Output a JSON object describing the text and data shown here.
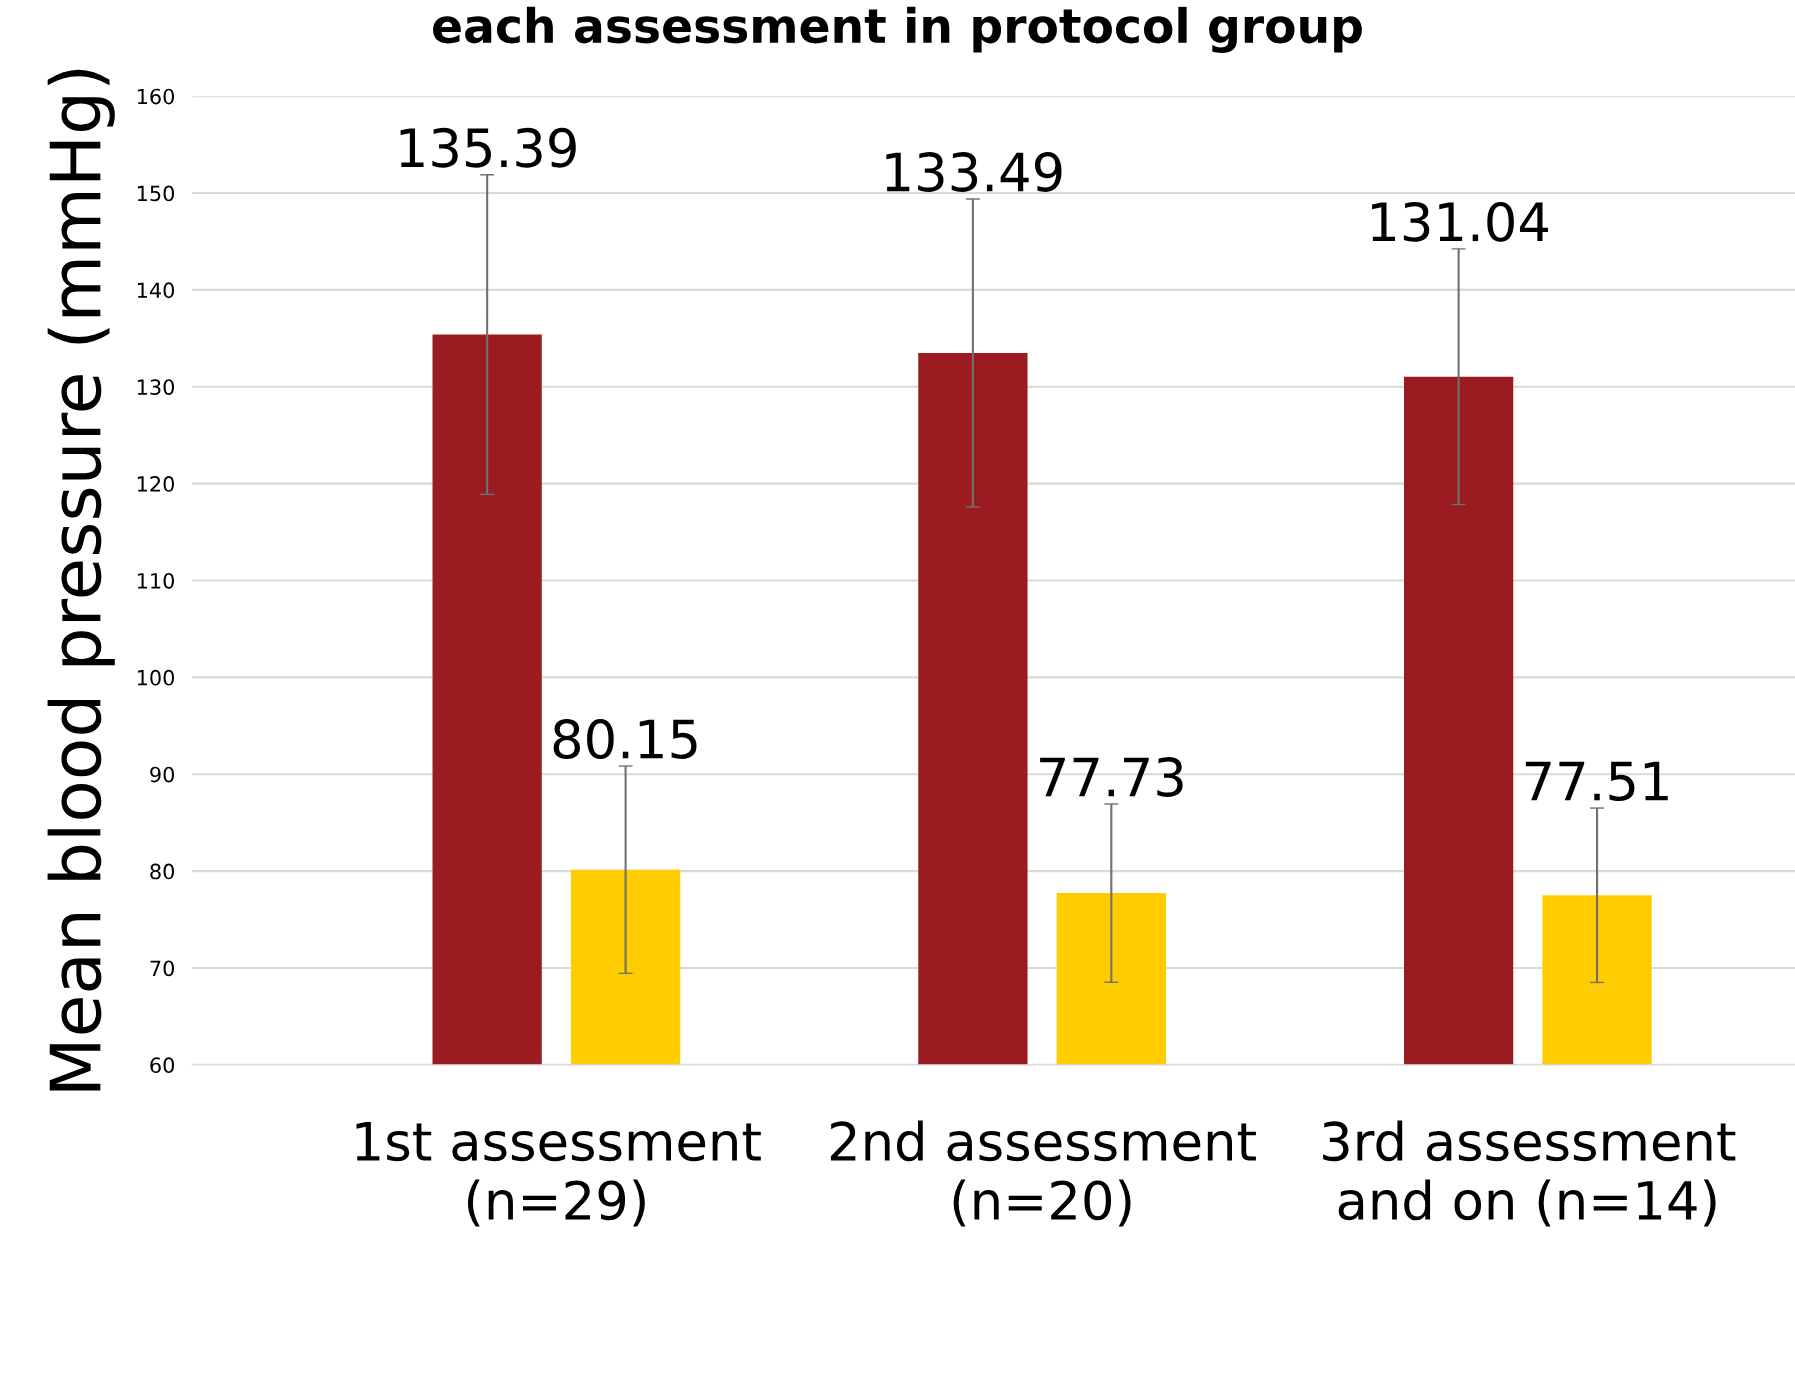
{
  "chart_data": {
    "type": "bar",
    "title": "each assessment in protocol group",
    "ylabel": "Mean blood pressure (mmHg)",
    "categories": [
      "1st assessment (n=29)",
      "2nd assessment (n=20)",
      "3rd assessment and on (n=14)"
    ],
    "series": [
      {
        "color": "#9a1c20",
        "values": [
          135.39,
          133.49,
          131.04
        ],
        "errors": [
          16.5,
          15.9,
          13.2
        ]
      },
      {
        "color": "#ffcc00",
        "values": [
          80.15,
          77.73,
          77.51
        ],
        "errors": [
          10.7,
          9.2,
          9.0
        ]
      }
    ],
    "ylim": [
      60,
      160
    ],
    "yticks": [
      60,
      70,
      80,
      90,
      100,
      110,
      120,
      130,
      140,
      150,
      160
    ],
    "grid": "y",
    "data_labels": true,
    "legend": false
  }
}
